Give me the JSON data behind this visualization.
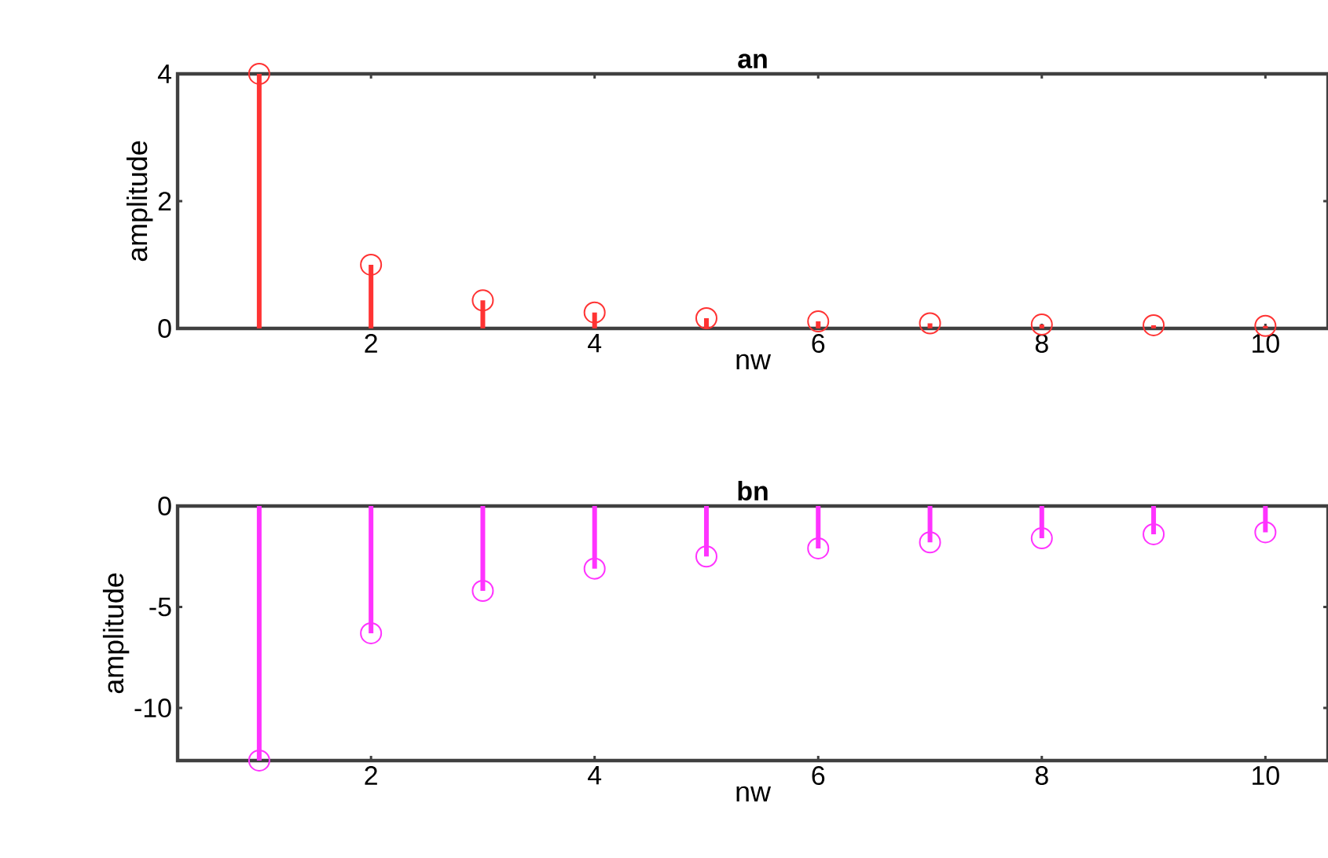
{
  "chart_data": [
    {
      "type": "lollipop",
      "title": "an",
      "xlabel": "nw",
      "ylabel": "amplitude",
      "x": [
        1,
        2,
        3,
        4,
        5,
        6,
        7,
        8,
        9,
        10
      ],
      "color": "#ff3333",
      "marker": "circle",
      "xlim": [
        0.27,
        10.56
      ],
      "xticks": [
        2,
        4,
        6,
        8,
        10
      ],
      "ylim": [
        0,
        4
      ],
      "yticks": [
        0,
        2,
        4
      ],
      "values": [
        4,
        1,
        0.44,
        0.25,
        0.16,
        0.11,
        0.08,
        0.06,
        0.05,
        0.04
      ]
    },
    {
      "type": "lollipop",
      "title": "bn",
      "xlabel": "nw",
      "ylabel": "amplitude",
      "x": [
        1,
        2,
        3,
        4,
        5,
        6,
        7,
        8,
        9,
        10
      ],
      "color": "#ff33ff",
      "marker": "circle",
      "xlim": [
        0.27,
        10.56
      ],
      "xticks": [
        2,
        4,
        6,
        8,
        10
      ],
      "ylim": [
        -12.6,
        0
      ],
      "yticks": [
        -10,
        -5,
        0
      ],
      "values": [
        -12.6,
        -6.3,
        -4.2,
        -3.1,
        -2.5,
        -2.1,
        -1.8,
        -1.6,
        -1.4,
        -1.3
      ]
    }
  ]
}
